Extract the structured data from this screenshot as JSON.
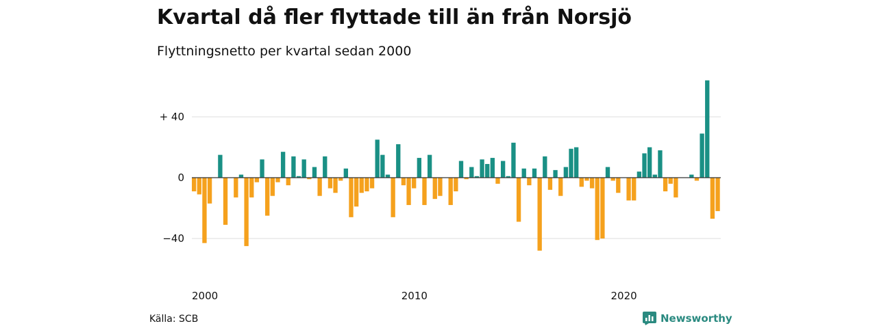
{
  "title": "Kvartal då fler flyttade till än från Norsjö",
  "subtitle": "Flyttningsnetto per kvartal sedan 2000",
  "source": "Källa: SCB",
  "brand": "Newsworthy",
  "colors": {
    "positive": "#1a9085",
    "negative": "#f5a11d",
    "grid": "#dddddd",
    "zero": "#333333",
    "brand": "#2a8a80"
  },
  "chart_data": {
    "type": "bar",
    "ylim": [
      -60,
      64
    ],
    "y_ticks": [
      {
        "value": 40,
        "label": "+ 40"
      },
      {
        "value": 0,
        "label": "0"
      },
      {
        "value": -40,
        "label": "−40"
      }
    ],
    "x_ticks": [
      {
        "index": 0,
        "label": "2000"
      },
      {
        "index": 40,
        "label": "2010"
      },
      {
        "index": 80,
        "label": "2020"
      }
    ],
    "values": [
      -9,
      -11,
      -43,
      -17,
      0,
      15,
      -31,
      0,
      -13,
      2,
      -45,
      -13,
      -3,
      12,
      -25,
      -12,
      -3,
      17,
      -5,
      14,
      1,
      12,
      -1,
      7,
      -12,
      14,
      -7,
      -10,
      -2,
      6,
      -26,
      -19,
      -10,
      -9,
      -7,
      25,
      15,
      2,
      -26,
      22,
      -5,
      -18,
      -7,
      13,
      -18,
      15,
      -14,
      -12,
      0,
      -18,
      -9,
      11,
      -1,
      7,
      1,
      12,
      9,
      13,
      -4,
      11,
      1,
      23,
      -29,
      6,
      -5,
      6,
      -48,
      14,
      -8,
      5,
      -12,
      7,
      19,
      20,
      -6,
      -2,
      -7,
      -41,
      -40,
      7,
      -2,
      -10,
      0,
      -15,
      -15,
      4,
      16,
      20,
      2,
      18,
      -9,
      -4,
      -13,
      0,
      0,
      2,
      -2,
      29,
      64,
      -27,
      -22
    ]
  }
}
